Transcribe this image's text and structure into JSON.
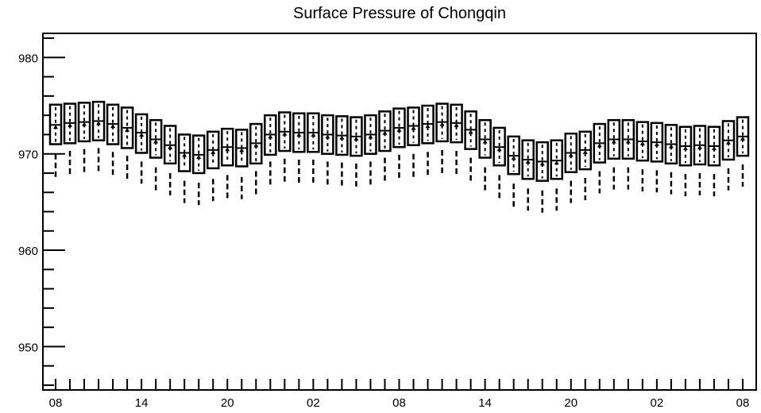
{
  "chart_data": {
    "type": "box",
    "title": "Surface Pressure of Chongqin",
    "xlabel": "",
    "ylabel": "",
    "ylim": [
      945.5,
      982.5
    ],
    "y_ticks": [
      950,
      960,
      970,
      980
    ],
    "x_tick_labels": [
      "08",
      "14",
      "20",
      "02",
      "08",
      "14",
      "20",
      "02",
      "08"
    ],
    "x_tick_hours": [
      0,
      6,
      12,
      18,
      24,
      30,
      36,
      42,
      48
    ],
    "x_hours": [
      0,
      1,
      2,
      3,
      4,
      5,
      6,
      7,
      8,
      9,
      10,
      11,
      12,
      13,
      14,
      15,
      16,
      17,
      18,
      19,
      20,
      21,
      22,
      23,
      24,
      25,
      26,
      27,
      28,
      29,
      30,
      31,
      32,
      33,
      34,
      35,
      36,
      37,
      38,
      39,
      40,
      41,
      42,
      43,
      44,
      45,
      46,
      47,
      48
    ],
    "q3": [
      975.1,
      975.2,
      975.3,
      975.4,
      975.1,
      974.8,
      974.1,
      973.5,
      972.9,
      972.0,
      971.9,
      972.3,
      972.6,
      972.5,
      973.1,
      974.0,
      974.3,
      974.2,
      974.2,
      974.0,
      973.9,
      973.8,
      974.0,
      974.4,
      974.7,
      974.8,
      975.0,
      975.2,
      975.1,
      974.4,
      973.5,
      972.7,
      971.8,
      971.4,
      971.2,
      971.4,
      972.1,
      972.3,
      973.1,
      973.5,
      973.5,
      973.3,
      973.2,
      973.0,
      972.8,
      972.9,
      972.8,
      973.4,
      973.8
    ],
    "q1": [
      971.0,
      971.1,
      971.3,
      971.4,
      971.0,
      970.6,
      970.1,
      969.6,
      969.0,
      968.2,
      968.0,
      968.5,
      968.8,
      968.7,
      969.0,
      969.9,
      970.3,
      970.2,
      970.2,
      970.0,
      969.9,
      969.8,
      970.0,
      970.3,
      970.7,
      970.9,
      971.1,
      971.3,
      971.2,
      970.5,
      969.6,
      968.8,
      967.9,
      967.4,
      967.2,
      967.4,
      968.1,
      968.4,
      969.1,
      969.5,
      969.5,
      969.3,
      969.2,
      969.0,
      968.8,
      968.9,
      968.8,
      969.4,
      969.8
    ],
    "median": [
      973.0,
      973.2,
      973.3,
      973.4,
      973.1,
      972.7,
      972.2,
      971.5,
      970.9,
      970.1,
      969.9,
      970.4,
      970.7,
      970.6,
      971.1,
      972.0,
      972.3,
      972.2,
      972.2,
      972.0,
      971.9,
      971.8,
      972.0,
      972.4,
      972.7,
      972.9,
      973.1,
      973.3,
      973.2,
      972.5,
      971.5,
      970.7,
      969.8,
      969.4,
      969.2,
      969.3,
      970.1,
      970.4,
      971.1,
      971.5,
      971.5,
      971.3,
      971.2,
      971.0,
      970.8,
      970.9,
      970.8,
      971.4,
      971.8
    ],
    "whisker_low_dash_top": [
      970.0,
      970.3,
      970.5,
      970.6,
      970.2,
      969.8,
      969.2,
      968.6,
      968.0,
      967.2,
      967.0,
      967.4,
      967.8,
      967.6,
      968.2,
      969.2,
      969.5,
      969.4,
      969.4,
      969.2,
      969.1,
      969.0,
      969.2,
      969.6,
      969.9,
      970.0,
      970.2,
      970.4,
      970.3,
      969.6,
      968.6,
      967.8,
      966.9,
      966.4,
      966.2,
      966.4,
      967.2,
      967.5,
      968.2,
      968.6,
      968.6,
      968.4,
      968.3,
      968.1,
      967.9,
      968.0,
      967.9,
      968.5,
      968.9
    ],
    "whisker_low_dash_bottom": [
      967.6,
      967.9,
      968.1,
      968.2,
      967.8,
      967.4,
      966.9,
      966.2,
      965.7,
      964.9,
      964.7,
      965.1,
      965.4,
      965.3,
      965.8,
      966.8,
      967.1,
      967.0,
      967.0,
      966.8,
      966.7,
      966.6,
      966.8,
      967.2,
      967.5,
      967.6,
      967.8,
      968.0,
      967.9,
      967.2,
      966.2,
      965.4,
      964.5,
      964.1,
      963.9,
      964.1,
      964.9,
      965.2,
      965.9,
      966.3,
      966.3,
      966.1,
      966.0,
      965.8,
      965.6,
      965.7,
      965.6,
      966.2,
      966.6
    ]
  }
}
